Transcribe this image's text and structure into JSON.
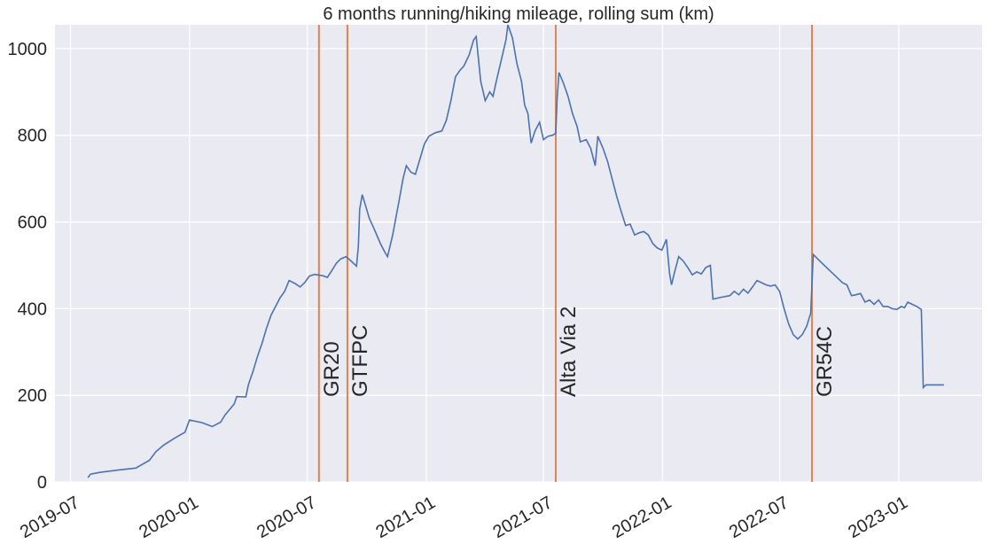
{
  "chart_data": {
    "type": "line",
    "title": "6 months running/hiking mileage, rolling sum (km)",
    "xlabel": "",
    "ylabel": "",
    "xlim": [
      "2019-06-07",
      "2023-05-10"
    ],
    "ylim": [
      0,
      1055
    ],
    "grid": true,
    "legend": "none",
    "background_color": "#eaeaf2",
    "grid_color": "#ffffff",
    "line_color": "#4c72b0",
    "event_color": "#dd8452",
    "yticks": [
      0,
      200,
      400,
      600,
      800,
      1000
    ],
    "xticks": [
      {
        "date": "2019-07-01",
        "label": "2019-07"
      },
      {
        "date": "2020-01-01",
        "label": "2020-01"
      },
      {
        "date": "2020-07-01",
        "label": "2020-07"
      },
      {
        "date": "2021-01-01",
        "label": "2021-01"
      },
      {
        "date": "2021-07-01",
        "label": "2021-07"
      },
      {
        "date": "2022-01-01",
        "label": "2022-01"
      },
      {
        "date": "2022-07-01",
        "label": "2022-07"
      },
      {
        "date": "2023-01-01",
        "label": "2023-01"
      }
    ],
    "events": [
      {
        "date": "2020-07-19",
        "label": "GR20"
      },
      {
        "date": "2020-09-01",
        "label": "GTFPC"
      },
      {
        "date": "2021-07-20",
        "label": "Alta Via 2"
      },
      {
        "date": "2022-08-20",
        "label": "GR54C"
      }
    ],
    "series": [
      {
        "points": [
          [
            "2019-07-28",
            10
          ],
          [
            "2019-08-01",
            18
          ],
          [
            "2019-08-15",
            22
          ],
          [
            "2019-09-15",
            28
          ],
          [
            "2019-10-10",
            32
          ],
          [
            "2019-10-31",
            50
          ],
          [
            "2019-11-10",
            70
          ],
          [
            "2019-11-22",
            85
          ],
          [
            "2019-12-10",
            102
          ],
          [
            "2019-12-25",
            115
          ],
          [
            "2020-01-01",
            143
          ],
          [
            "2020-01-20",
            137
          ],
          [
            "2020-02-05",
            128
          ],
          [
            "2020-02-18",
            138
          ],
          [
            "2020-02-25",
            155
          ],
          [
            "2020-03-10",
            180
          ],
          [
            "2020-03-14",
            197
          ],
          [
            "2020-03-28",
            196
          ],
          [
            "2020-04-01",
            225
          ],
          [
            "2020-04-08",
            255
          ],
          [
            "2020-04-15",
            290
          ],
          [
            "2020-04-22",
            320
          ],
          [
            "2020-04-29",
            355
          ],
          [
            "2020-05-06",
            385
          ],
          [
            "2020-05-13",
            405
          ],
          [
            "2020-05-20",
            425
          ],
          [
            "2020-05-27",
            440
          ],
          [
            "2020-06-03",
            465
          ],
          [
            "2020-06-12",
            458
          ],
          [
            "2020-06-20",
            450
          ],
          [
            "2020-06-27",
            460
          ],
          [
            "2020-07-04",
            475
          ],
          [
            "2020-07-12",
            479
          ],
          [
            "2020-07-25",
            476
          ],
          [
            "2020-08-01",
            472
          ],
          [
            "2020-08-08",
            488
          ],
          [
            "2020-08-15",
            505
          ],
          [
            "2020-08-22",
            515
          ],
          [
            "2020-08-30",
            520
          ],
          [
            "2020-09-08",
            508
          ],
          [
            "2020-09-15",
            498
          ],
          [
            "2020-09-18",
            545
          ],
          [
            "2020-09-20",
            630
          ],
          [
            "2020-09-24",
            663
          ],
          [
            "2020-10-01",
            628
          ],
          [
            "2020-10-05",
            608
          ],
          [
            "2020-10-12",
            585
          ],
          [
            "2020-10-22",
            550
          ],
          [
            "2020-10-29",
            530
          ],
          [
            "2020-11-02",
            520
          ],
          [
            "2020-11-10",
            570
          ],
          [
            "2020-11-20",
            650
          ],
          [
            "2020-11-26",
            700
          ],
          [
            "2020-12-01",
            730
          ],
          [
            "2020-12-08",
            715
          ],
          [
            "2020-12-15",
            710
          ],
          [
            "2020-12-22",
            745
          ],
          [
            "2020-12-29",
            780
          ],
          [
            "2021-01-05",
            798
          ],
          [
            "2021-01-15",
            806
          ],
          [
            "2021-01-25",
            810
          ],
          [
            "2021-02-01",
            835
          ],
          [
            "2021-02-08",
            880
          ],
          [
            "2021-02-15",
            935
          ],
          [
            "2021-02-22",
            950
          ],
          [
            "2021-02-28",
            960
          ],
          [
            "2021-03-08",
            985
          ],
          [
            "2021-03-15",
            1020
          ],
          [
            "2021-03-19",
            1028
          ],
          [
            "2021-03-26",
            925
          ],
          [
            "2021-04-02",
            880
          ],
          [
            "2021-04-09",
            900
          ],
          [
            "2021-04-14",
            890
          ],
          [
            "2021-04-20",
            930
          ],
          [
            "2021-04-27",
            975
          ],
          [
            "2021-05-04",
            1020
          ],
          [
            "2021-05-07",
            1055
          ],
          [
            "2021-05-14",
            1025
          ],
          [
            "2021-05-21",
            965
          ],
          [
            "2021-05-28",
            925
          ],
          [
            "2021-06-02",
            870
          ],
          [
            "2021-06-07",
            850
          ],
          [
            "2021-06-12",
            782
          ],
          [
            "2021-06-18",
            810
          ],
          [
            "2021-06-25",
            830
          ],
          [
            "2021-07-01",
            790
          ],
          [
            "2021-07-08",
            798
          ],
          [
            "2021-07-15",
            800
          ],
          [
            "2021-07-20",
            805
          ],
          [
            "2021-07-22",
            880
          ],
          [
            "2021-07-25",
            945
          ],
          [
            "2021-08-01",
            920
          ],
          [
            "2021-08-08",
            890
          ],
          [
            "2021-08-15",
            850
          ],
          [
            "2021-08-22",
            820
          ],
          [
            "2021-08-27",
            785
          ],
          [
            "2021-09-05",
            790
          ],
          [
            "2021-09-12",
            770
          ],
          [
            "2021-09-19",
            730
          ],
          [
            "2021-09-23",
            798
          ],
          [
            "2021-10-01",
            770
          ],
          [
            "2021-10-08",
            740
          ],
          [
            "2021-10-15",
            700
          ],
          [
            "2021-10-22",
            660
          ],
          [
            "2021-10-29",
            625
          ],
          [
            "2021-11-05",
            592
          ],
          [
            "2021-11-12",
            595
          ],
          [
            "2021-11-19",
            570
          ],
          [
            "2021-11-26",
            575
          ],
          [
            "2021-12-03",
            578
          ],
          [
            "2021-12-10",
            570
          ],
          [
            "2021-12-17",
            550
          ],
          [
            "2021-12-24",
            540
          ],
          [
            "2021-12-31",
            535
          ],
          [
            "2022-01-07",
            560
          ],
          [
            "2022-01-12",
            480
          ],
          [
            "2022-01-15",
            455
          ],
          [
            "2022-01-19",
            480
          ],
          [
            "2022-01-26",
            520
          ],
          [
            "2022-02-02",
            510
          ],
          [
            "2022-02-09",
            495
          ],
          [
            "2022-02-16",
            478
          ],
          [
            "2022-02-23",
            485
          ],
          [
            "2022-03-02",
            480
          ],
          [
            "2022-03-09",
            495
          ],
          [
            "2022-03-16",
            500
          ],
          [
            "2022-03-20",
            422
          ],
          [
            "2022-04-01",
            426
          ],
          [
            "2022-04-15",
            430
          ],
          [
            "2022-04-22",
            440
          ],
          [
            "2022-04-29",
            432
          ],
          [
            "2022-05-06",
            445
          ],
          [
            "2022-05-13",
            436
          ],
          [
            "2022-05-20",
            450
          ],
          [
            "2022-05-27",
            465
          ],
          [
            "2022-06-03",
            460
          ],
          [
            "2022-06-10",
            455
          ],
          [
            "2022-06-17",
            452
          ],
          [
            "2022-06-24",
            455
          ],
          [
            "2022-07-01",
            440
          ],
          [
            "2022-07-08",
            400
          ],
          [
            "2022-07-15",
            365
          ],
          [
            "2022-07-22",
            340
          ],
          [
            "2022-07-29",
            330
          ],
          [
            "2022-08-05",
            340
          ],
          [
            "2022-08-12",
            360
          ],
          [
            "2022-08-18",
            390
          ],
          [
            "2022-08-22",
            525
          ],
          [
            "2022-09-01",
            510
          ],
          [
            "2022-09-15",
            490
          ],
          [
            "2022-09-29",
            470
          ],
          [
            "2022-10-06",
            460
          ],
          [
            "2022-10-13",
            455
          ],
          [
            "2022-10-20",
            430
          ],
          [
            "2022-10-27",
            432
          ],
          [
            "2022-11-03",
            435
          ],
          [
            "2022-11-10",
            415
          ],
          [
            "2022-11-17",
            420
          ],
          [
            "2022-11-24",
            410
          ],
          [
            "2022-12-01",
            420
          ],
          [
            "2022-12-08",
            405
          ],
          [
            "2022-12-15",
            405
          ],
          [
            "2022-12-22",
            400
          ],
          [
            "2022-12-29",
            398
          ],
          [
            "2023-01-05",
            405
          ],
          [
            "2023-01-10",
            402
          ],
          [
            "2023-01-15",
            415
          ],
          [
            "2023-01-22",
            410
          ],
          [
            "2023-01-29",
            405
          ],
          [
            "2023-02-05",
            398
          ],
          [
            "2023-02-08",
            218
          ],
          [
            "2023-02-12",
            224
          ],
          [
            "2023-03-12",
            224
          ]
        ]
      }
    ]
  }
}
